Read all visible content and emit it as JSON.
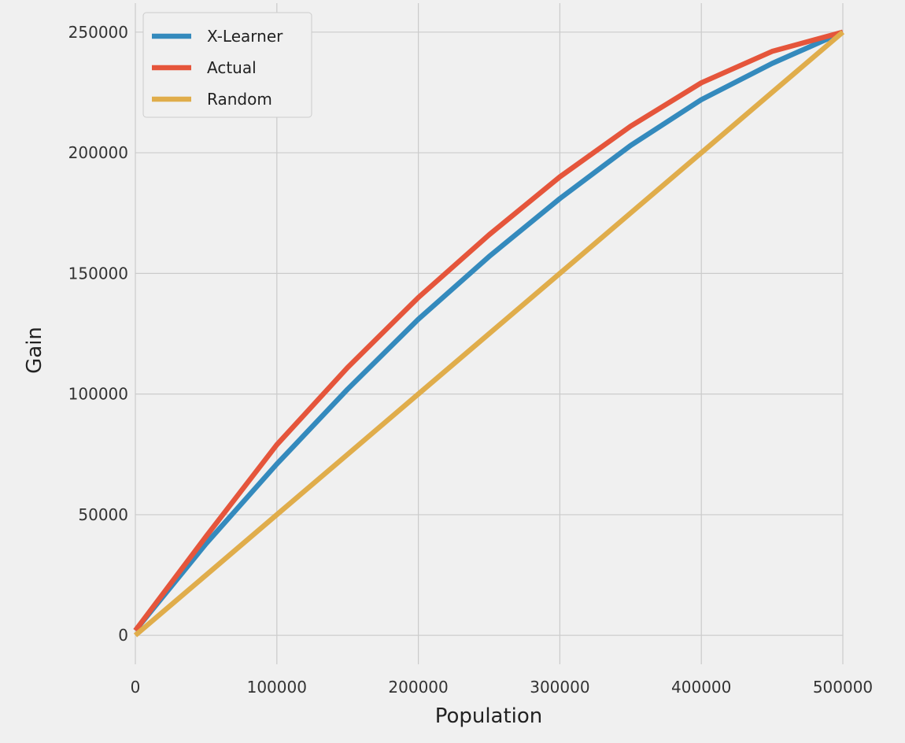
{
  "chart_data": {
    "type": "line",
    "title": "",
    "xlabel": "Population",
    "ylabel": "Gain",
    "xlim": [
      0,
      500000
    ],
    "ylim": [
      -12000,
      262000
    ],
    "grid": true,
    "legend_position": "top-left",
    "xticks": [
      0,
      100000,
      200000,
      300000,
      400000,
      500000
    ],
    "xtick_labels": [
      "0",
      "100000",
      "200000",
      "300000",
      "400000",
      "500000"
    ],
    "yticks": [
      0,
      50000,
      100000,
      150000,
      200000,
      250000
    ],
    "ytick_labels": [
      "0",
      "50000",
      "100000",
      "150000",
      "200000",
      "250000"
    ],
    "x": [
      0,
      50000,
      100000,
      150000,
      200000,
      250000,
      300000,
      350000,
      400000,
      450000,
      500000
    ],
    "series": [
      {
        "name": "X-Learner",
        "color": "#348abd",
        "values": [
          2000,
          38000,
          71000,
          102000,
          131000,
          157000,
          181000,
          203000,
          222000,
          237000,
          250000
        ]
      },
      {
        "name": "Actual",
        "color": "#e5553b",
        "values": [
          2000,
          41000,
          79000,
          111000,
          140000,
          166000,
          190000,
          211000,
          229000,
          242000,
          250000
        ]
      },
      {
        "name": "Random",
        "color": "#e0ad4b",
        "values": [
          0,
          25000,
          50000,
          75000,
          100000,
          125000,
          150000,
          175000,
          200000,
          225000,
          250000
        ]
      }
    ]
  }
}
